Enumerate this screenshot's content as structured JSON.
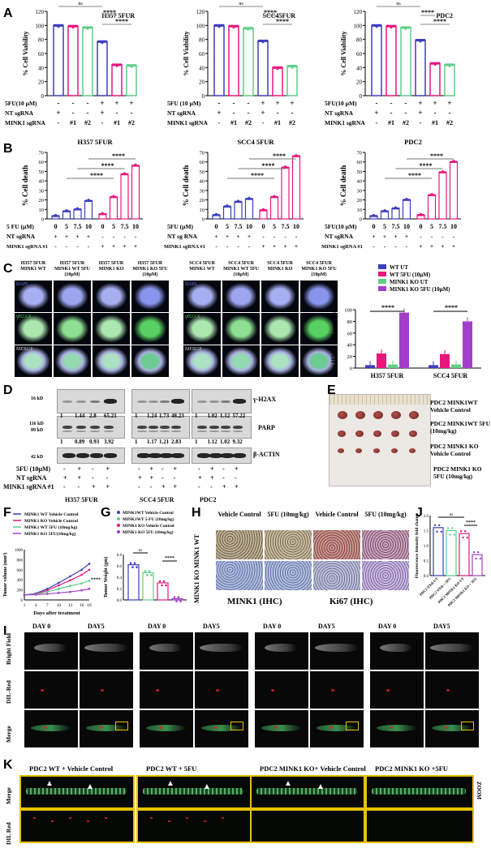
{
  "panels": {
    "a": "A",
    "b": "B",
    "c": "C",
    "d": "D",
    "e": "E",
    "f": "F",
    "g": "G",
    "h": "H",
    "i": "I",
    "j": "J",
    "k": "K"
  },
  "panelA": {
    "charts": [
      {
        "title": "H357 5FUR",
        "sig": [
          "ns",
          "****",
          "****"
        ],
        "treat_label": "5FU(10 µM)"
      },
      {
        "title": "SCC45FUR",
        "sig": [
          "ns",
          "****",
          "****"
        ],
        "treat_label": "5FU (10 µM)"
      },
      {
        "title": "PDC2",
        "sig": [
          "ns",
          "****",
          "****"
        ],
        "treat_label": "5FU(10 µM)"
      }
    ],
    "ylabel": "% Cell Viability",
    "row_nt": "NT sgRNA",
    "row_minkl": "MINK1 sgRNA",
    "signs_5fu": [
      "-",
      "-",
      "-",
      "+",
      "+",
      "+"
    ],
    "signs_nt": [
      "+",
      "-",
      "-",
      "+",
      "-",
      "-"
    ],
    "signs_mink": [
      "-",
      "#1",
      "#2",
      "-",
      "#1",
      "#2"
    ]
  },
  "panelB": {
    "charts": [
      {
        "title": "H357 5FUR",
        "treat_label": "5 FU (µM)",
        "nt_label": "NT sgRNA",
        "mink_label": "MINK1 sgRNA #1"
      },
      {
        "title": "SCC4 5FUR",
        "treat_label": "5FU (µM)",
        "nt_label": "NT sg RNA",
        "mink_label": "MINK1 sgRNA #1"
      },
      {
        "title": "PDC2",
        "treat_label": "5FU(10 µM)",
        "nt_label": "NT sgRNA",
        "mink_label": "MINK1 sgRNA #1"
      }
    ],
    "ylabel": "% Cell death",
    "sig": "****",
    "doses": [
      "0",
      "5",
      "7.5",
      "10",
      "0",
      "5",
      "7.5",
      "10"
    ]
  },
  "panelC": {
    "headers_left": [
      "H357 5FUR MINK1 WT",
      "H357 5FUR MINK1 WT 5FU (10µM)",
      "H357 5FUR MINK1 KO",
      "H357 5FUR MINK1 KO 5FU (10µM)"
    ],
    "headers_right": [
      "SCC4 5FUR MINK1 WT",
      "SCC4 5FUR MINK1 WT 5FU (10µM)",
      "SCC4 5FUR MINK1 KO",
      "SCC4 5FUR MINK1 KO 5FU (10µM)"
    ],
    "row_labels": [
      "DAPI",
      "γH2AX",
      "MERGE"
    ],
    "ylabel": "γ H2AX foci number",
    "sig": "****",
    "legend": [
      "WT UT",
      "WT 5FU (10µM)",
      "MINK1 KO UT",
      "MINK1 KO 5FU (10µM)"
    ]
  },
  "panelD": {
    "mw": [
      "16 kD",
      "116 kD",
      "89 kD",
      "42 kD"
    ],
    "proteins": [
      "γ-H2AX",
      "PARP",
      "β-ACTIN"
    ],
    "h2ax_q": [
      [
        "1",
        "1.44",
        "2.8",
        "65.21"
      ],
      [
        "1",
        "1.24",
        "1.73",
        "48.23"
      ],
      [
        "1",
        "1.02",
        "1.12",
        "57.22"
      ]
    ],
    "parp_q": [
      [
        "1",
        "0.89",
        "0.93",
        "3.92"
      ],
      [
        "1",
        "1.17",
        "1.21",
        "2.83"
      ],
      [
        "1",
        "1.12",
        "1.02",
        "9.32"
      ]
    ],
    "rows": [
      "5FU (10µM)",
      "NT sgRNA",
      "MINK1 sgRNA #1"
    ],
    "s5": [
      "-",
      "+",
      "-",
      "+"
    ],
    "snt": [
      "+",
      "+",
      "-",
      "-"
    ],
    "smk": [
      "-",
      "-",
      "+",
      "+"
    ],
    "groups": [
      "H357 5FUR",
      "SCC4 5FUR",
      "PDC2"
    ]
  },
  "panelE": {
    "labels": [
      "PDC2  MINK1WT Vehicle Control",
      "PDC2  MINK1WT 5FU (10mg/kg)",
      "PDC2  MINK1 KO Vehicle Control",
      "PDC2  MINK1 KO 5FU (10mg/kg)"
    ]
  },
  "panelF": {
    "legend": [
      "MINK1 WT  Vehicle Control",
      "MINK1 KO  Vehicle Control",
      "MINK1 WT 5FU (10mg/kg)",
      "MINK1 KO 5FU(10mg/kg)"
    ],
    "ylabel": "Tumor volume (mm³)",
    "xlabel": "Days after treatment",
    "ticks_x": [
      "1",
      "4",
      "7",
      "10",
      "13",
      "16",
      "18"
    ],
    "ticks_y": [
      "0",
      "200",
      "400",
      "600",
      "800",
      "1000"
    ],
    "sig": "****"
  },
  "panelG": {
    "legend": [
      "MINK1WT Vehicle Control",
      "MINK1WT 5-FU (10mg/kg)",
      "MINK1 KO Vehicle Control",
      "MINK1 KO 5FU (10mg/kg)"
    ],
    "ylabel": "Tumor Weight (gm)",
    "ticks_y": [
      "0.0",
      "0.2",
      "0.4",
      "0.6",
      "0.8"
    ],
    "sig": [
      "ns",
      "****"
    ]
  },
  "panelH": {
    "cols": [
      "Vehicle Control",
      "5FU (10mg/kg)",
      "Vehicle Control",
      "5FU (10mg/kg)"
    ],
    "rows": "MINK1 KO MINK1 WT",
    "captions": [
      "MINK1 (IHC)",
      "Ki67 (IHC)"
    ]
  },
  "panelJ": {
    "ylabel": "Fluorescence intensity fold change",
    "ticks_y": [
      "0.0",
      "0.5",
      "1.0",
      "1.5",
      "2.0"
    ],
    "xcats": [
      "PDC2 NTsh UT",
      "PDC2 NTsh + 5FU",
      "PDC2 MINK1 KO UT",
      "PDC2 MINK1 KO + 5FU"
    ],
    "sig": [
      "ns",
      "****"
    ]
  },
  "panelI": {
    "day_labels": [
      "DAY 0",
      "DAY5"
    ],
    "row_labels": [
      "Bright Field",
      "DIL-Red",
      "Merge"
    ]
  },
  "panelK": {
    "titles": [
      "PDC2 WT  + Vehicle Control",
      "PDC2 WT + 5FU",
      "PDC2 MINK1 KO+ Vehicle Control",
      "PDC2 MINK1 KO +5FU"
    ],
    "row_labels": [
      "Merge",
      "DIL Red"
    ],
    "zoom": "ZOOM"
  },
  "colors": {
    "blue": "#3d3dbf",
    "pink": "#e8177d",
    "green": "#5fcf86",
    "purple": "#a23fc9",
    "yellow": "#e6c200"
  },
  "chart_data": [
    {
      "type": "bar",
      "title": "H357 5FUR",
      "ylabel": "% Cell Viability",
      "ylim": [
        0,
        120
      ],
      "categories": [
        "NT",
        "MINK1 #1",
        "MINK1 #2",
        "NT+5FU",
        "MINK1 #1+5FU",
        "MINK1 #2+5FU"
      ],
      "values": [
        100,
        99,
        97,
        77,
        44,
        43
      ]
    },
    {
      "type": "bar",
      "title": "SCC45FUR",
      "ylabel": "% Cell Viability",
      "ylim": [
        0,
        120
      ],
      "categories": [
        "NT",
        "MINK1 #1",
        "MINK1 #2",
        "NT+5FU",
        "MINK1 #1+5FU",
        "MINK1 #2+5FU"
      ],
      "values": [
        100,
        99,
        96,
        78,
        40,
        42
      ]
    },
    {
      "type": "bar",
      "title": "PDC2",
      "ylabel": "% Cell Viability",
      "ylim": [
        0,
        120
      ],
      "categories": [
        "NT",
        "MINK1 #1",
        "MINK1 #2",
        "NT+5FU",
        "MINK1 #1+5FU",
        "MINK1 #2+5FU"
      ],
      "values": [
        100,
        99,
        97,
        79,
        46,
        44
      ]
    },
    {
      "type": "bar",
      "title": "H357 5FUR",
      "ylabel": "% Cell death",
      "ylim": [
        0,
        70
      ],
      "categories": [
        "0",
        "5",
        "7.5",
        "10",
        "0",
        "5",
        "7.5",
        "10"
      ],
      "values": [
        3,
        8,
        10,
        19,
        5,
        23,
        47,
        56
      ]
    },
    {
      "type": "bar",
      "title": "SCC4 5FUR",
      "ylabel": "% Cell death",
      "ylim": [
        0,
        70
      ],
      "categories": [
        "0",
        "5",
        "7.5",
        "10",
        "0",
        "5",
        "7.5",
        "10"
      ],
      "values": [
        4,
        13,
        18,
        21,
        9,
        23,
        54,
        66
      ]
    },
    {
      "type": "bar",
      "title": "PDC2",
      "ylabel": "% Cell death",
      "ylim": [
        0,
        70
      ],
      "categories": [
        "0",
        "5",
        "7.5",
        "10",
        "0",
        "5",
        "7.5",
        "10"
      ],
      "values": [
        3,
        8,
        11,
        20,
        4,
        25,
        49,
        60
      ]
    },
    {
      "type": "bar",
      "ylabel": "γ H2AX foci number",
      "ylim": [
        0,
        100
      ],
      "categories": [
        "H357 5FUR",
        "SCC4 5FUR"
      ],
      "series": [
        {
          "name": "WT UT",
          "values": [
            5,
            5
          ]
        },
        {
          "name": "WT 5FU (10µM)",
          "values": [
            25,
            24
          ]
        },
        {
          "name": "MINK1 KO UT",
          "values": [
            6,
            6
          ]
        },
        {
          "name": "MINK1 KO 5FU (10µM)",
          "values": [
            95,
            80
          ]
        }
      ]
    },
    {
      "type": "line",
      "ylabel": "Tumor volume (mm³)",
      "xlabel": "Days after treatment",
      "ylim": [
        0,
        1000
      ],
      "x": [
        1,
        4,
        7,
        10,
        13,
        16,
        18
      ],
      "series": [
        {
          "name": "MINK1 WT  Vehicle Control",
          "values": [
            100,
            130,
            220,
            340,
            470,
            600,
            720
          ]
        },
        {
          "name": "MINK1 KO  Vehicle Control",
          "values": [
            100,
            120,
            190,
            290,
            390,
            500,
            600
          ]
        },
        {
          "name": "MINK1 WT 5FU (10mg/kg)",
          "values": [
            100,
            115,
            160,
            220,
            280,
            330,
            380
          ]
        },
        {
          "name": "MINK1 KO 5FU(10mg/kg)",
          "values": [
            100,
            105,
            120,
            140,
            160,
            190,
            220
          ]
        }
      ]
    },
    {
      "type": "bar",
      "ylabel": "Tumor Weight (gm)",
      "ylim": [
        0,
        0.8
      ],
      "categories": [
        "MINK1WT Vehicle Control",
        "MINK1WT 5-FU (10mg/kg)",
        "MINK1 KO Vehicle Control",
        "MINK1 KO 5FU (10mg/kg)"
      ],
      "values": [
        0.62,
        0.48,
        0.3,
        0.02
      ]
    },
    {
      "type": "bar",
      "ylabel": "Fluorescence intensity fold change",
      "ylim": [
        0,
        2.0
      ],
      "categories": [
        "PDC2 NTsh UT",
        "PDC2 NTsh + 5FU",
        "PDC2 MINK1 KO UT",
        "PDC2 MINK1 KO + 5FU"
      ],
      "values": [
        1.6,
        1.5,
        1.4,
        0.7
      ]
    }
  ]
}
